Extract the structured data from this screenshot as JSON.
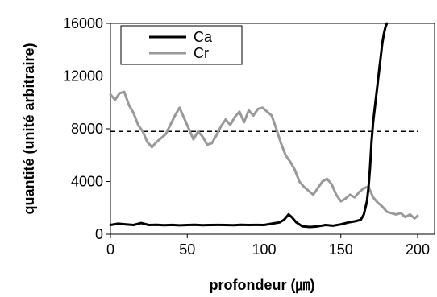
{
  "chart_data": {
    "type": "line",
    "xlabel": "profondeur (㎛)",
    "ylabel": "quantité (unité arbitraire)",
    "xlim": [
      0,
      200
    ],
    "ylim": [
      0,
      16000
    ],
    "x_ticks": [
      "0",
      "50",
      "100",
      "150",
      "200"
    ],
    "y_ticks": [
      "0",
      "4000",
      "8000",
      "12000",
      "16000"
    ],
    "grid": false,
    "legend_position": "top-left",
    "reference_line": {
      "y": 7800,
      "style": "dashed",
      "color": "#000000"
    },
    "series": [
      {
        "name": "Ca",
        "color": "#000000",
        "x": [
          0,
          5,
          10,
          15,
          20,
          25,
          30,
          35,
          40,
          45,
          50,
          55,
          60,
          65,
          70,
          75,
          80,
          85,
          90,
          95,
          100,
          105,
          110,
          113,
          116,
          118,
          121,
          125,
          130,
          135,
          140,
          145,
          150,
          155,
          160,
          163,
          165,
          167,
          168,
          169,
          170,
          171,
          172,
          173,
          174,
          175,
          176,
          177,
          178,
          179,
          180
        ],
        "y": [
          700,
          800,
          750,
          700,
          850,
          700,
          720,
          690,
          710,
          680,
          700,
          720,
          690,
          700,
          710,
          700,
          690,
          720,
          700,
          710,
          700,
          800,
          900,
          1100,
          1500,
          1300,
          900,
          600,
          550,
          600,
          700,
          650,
          750,
          900,
          1000,
          1100,
          1500,
          2500,
          3500,
          5000,
          7000,
          8500,
          9500,
          10500,
          11500,
          12500,
          13500,
          14500,
          15200,
          15700,
          16000
        ]
      },
      {
        "name": "Cr",
        "color": "#999999",
        "x": [
          0,
          3,
          6,
          9,
          12,
          15,
          18,
          21,
          24,
          27,
          30,
          33,
          36,
          39,
          42,
          45,
          48,
          51,
          54,
          57,
          60,
          63,
          66,
          69,
          72,
          75,
          78,
          81,
          84,
          87,
          90,
          93,
          96,
          99,
          102,
          105,
          108,
          111,
          114,
          117,
          120,
          123,
          126,
          129,
          132,
          135,
          138,
          141,
          144,
          147,
          150,
          153,
          156,
          159,
          162,
          165,
          168,
          171,
          174,
          177,
          180,
          183,
          186,
          189,
          192,
          195,
          198,
          200
        ],
        "y": [
          10600,
          10200,
          10700,
          10800,
          9800,
          9200,
          8300,
          7800,
          7000,
          6600,
          7000,
          7300,
          7600,
          8300,
          9000,
          9600,
          8800,
          8000,
          7200,
          7800,
          7400,
          6800,
          6900,
          7500,
          8200,
          8700,
          8300,
          8900,
          9300,
          8500,
          9400,
          9000,
          9500,
          9600,
          9300,
          9000,
          8000,
          6900,
          6000,
          5500,
          4900,
          4000,
          3600,
          3300,
          3000,
          3500,
          4000,
          4200,
          3800,
          3000,
          2500,
          2700,
          3000,
          2800,
          3200,
          3500,
          3600,
          2800,
          2400,
          2100,
          1700,
          1600,
          1500,
          1600,
          1300,
          1500,
          1200,
          1400
        ]
      }
    ]
  }
}
